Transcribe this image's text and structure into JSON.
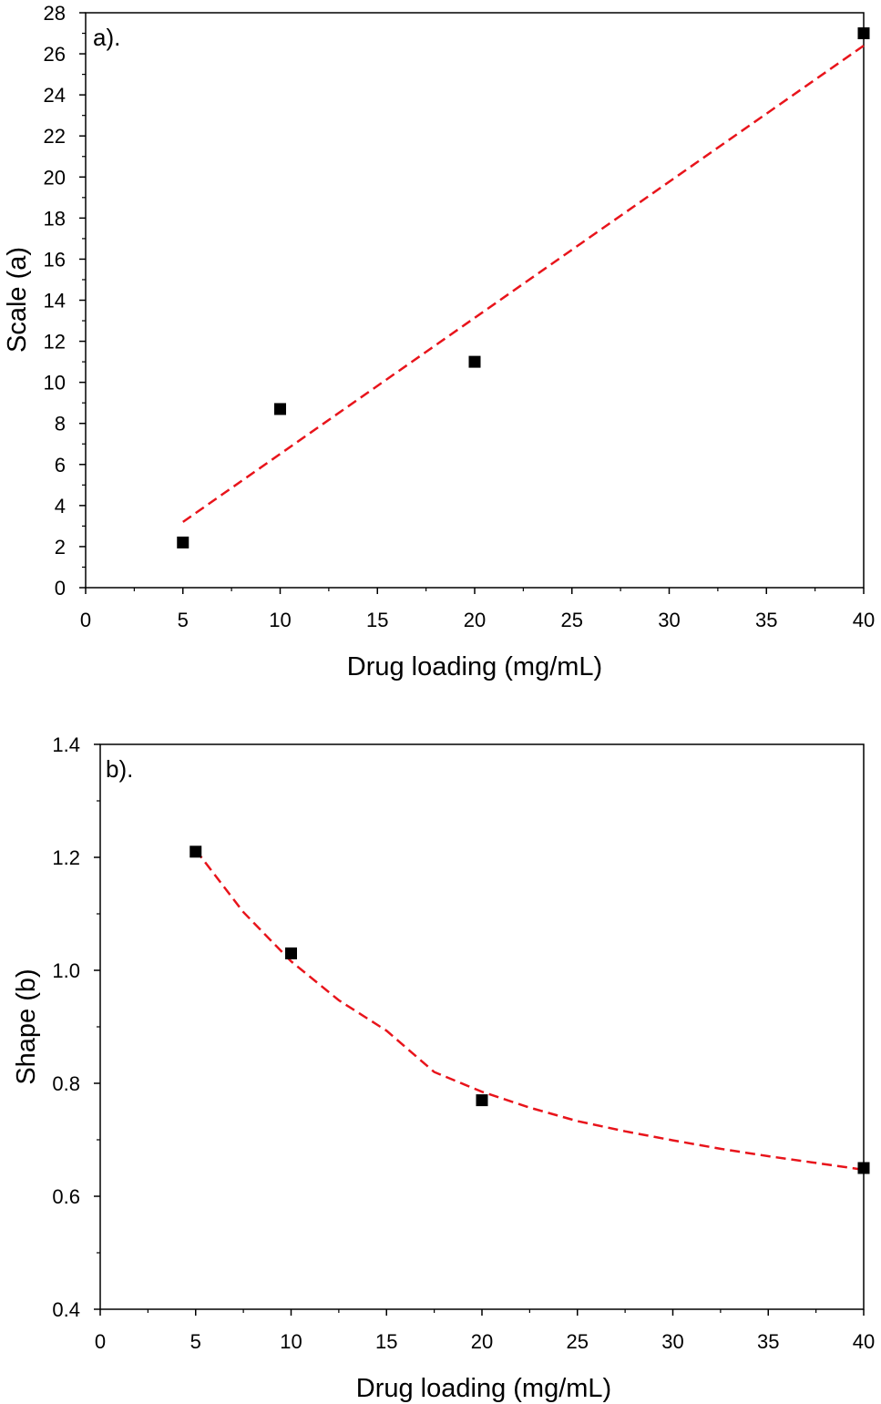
{
  "chart_data": [
    {
      "type": "scatter",
      "panel_label": "a).",
      "xlabel": "Drug loading (mg/mL)",
      "ylabel": "Scale (a)",
      "xlim": [
        0,
        40
      ],
      "ylim": [
        0,
        28
      ],
      "x_ticks": [
        0,
        5,
        10,
        15,
        20,
        25,
        30,
        35,
        40
      ],
      "y_ticks": [
        0,
        2,
        4,
        6,
        8,
        10,
        12,
        14,
        16,
        18,
        20,
        22,
        24,
        26,
        28
      ],
      "grid": false,
      "points": [
        {
          "x": 5,
          "y": 2.2
        },
        {
          "x": 10,
          "y": 8.7
        },
        {
          "x": 20,
          "y": 11.0
        },
        {
          "x": 40,
          "y": 27.0
        }
      ],
      "fit": {
        "style": "dashed",
        "color": "#e8141b",
        "x": [
          5,
          40
        ],
        "y": [
          3.2,
          26.4
        ]
      },
      "marker_color": "#000000"
    },
    {
      "type": "scatter",
      "panel_label": "b).",
      "xlabel": "Drug loading (mg/mL)",
      "ylabel": "Shape (b)",
      "xlim": [
        0,
        40
      ],
      "ylim": [
        0.4,
        1.4
      ],
      "x_ticks": [
        0,
        5,
        10,
        15,
        20,
        25,
        30,
        35,
        40
      ],
      "y_ticks": [
        "0.4",
        "0.6",
        "0.8",
        "1.0",
        "1.2",
        "1.4"
      ],
      "grid": false,
      "points": [
        {
          "x": 5,
          "y": 1.21
        },
        {
          "x": 10,
          "y": 1.03
        },
        {
          "x": 20,
          "y": 0.77
        },
        {
          "x": 40,
          "y": 0.65
        }
      ],
      "fit": {
        "style": "dashed",
        "color": "#e8141b",
        "x": [
          5,
          7.5,
          10,
          12.5,
          15,
          17.5,
          20,
          22.5,
          25,
          27.5,
          30,
          32.5,
          35,
          37.5,
          40
        ],
        "y": [
          1.213,
          1.103,
          1.016,
          0.947,
          0.893,
          0.82,
          0.785,
          0.757,
          0.733,
          0.715,
          0.699,
          0.684,
          0.671,
          0.659,
          0.647
        ]
      },
      "marker_color": "#000000"
    }
  ]
}
